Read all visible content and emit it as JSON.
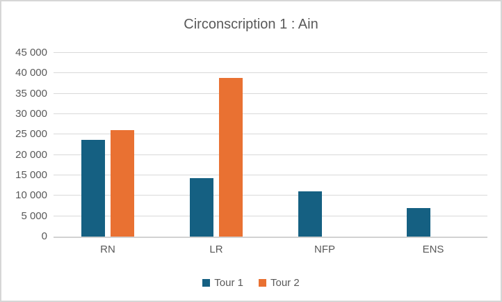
{
  "frame": {
    "background": "#FFFFFF",
    "border_color": "#D6D6D6"
  },
  "chart_data": {
    "type": "bar",
    "title": "Circonscription 1 : Ain",
    "categories": [
      "RN",
      "LR",
      "NFP",
      "ENS"
    ],
    "series": [
      {
        "name": "Tour 1",
        "color": "#156082",
        "values": [
          23700,
          14400,
          11100,
          7000
        ]
      },
      {
        "name": "Tour 2",
        "color": "#E97132",
        "values": [
          26100,
          38900,
          0,
          0
        ]
      }
    ],
    "xlabel": "",
    "ylabel": "",
    "ylim": [
      0,
      45000
    ],
    "ytick_step": 5000,
    "ytick_labels": [
      "0",
      "5 000",
      "10 000",
      "15 000",
      "20 000",
      "25 000",
      "30 000",
      "35 000",
      "40 000",
      "45 000"
    ],
    "grid": true,
    "gridline_color": "#D9D9D9",
    "axis_line_color": "#D2D2D2",
    "text_color": "#595959",
    "legend_position": "bottom"
  }
}
